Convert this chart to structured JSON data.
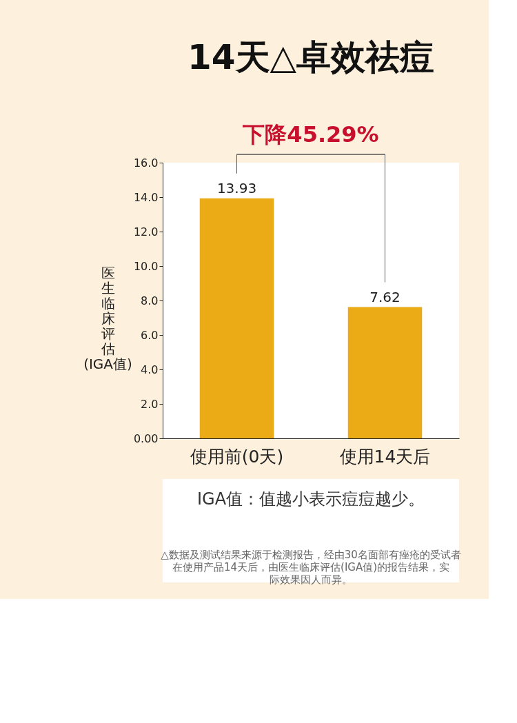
{
  "chart_data": {
    "type": "bar",
    "title": "14天△卓效祛痘",
    "ylabel": "医生临床评估(IGA值)",
    "categories": [
      "使用前(0天)",
      "使用14天后"
    ],
    "values": [
      13.93,
      7.62
    ],
    "color": "#ebab17",
    "data_labels": true,
    "ylim": [
      0,
      16
    ],
    "yticks": [
      {
        "value": 0,
        "label": "0.00"
      },
      {
        "value": 2,
        "label": "2.0"
      },
      {
        "value": 4,
        "label": "4.0"
      },
      {
        "value": 6,
        "label": "6.0"
      },
      {
        "value": 8,
        "label": "8.0"
      },
      {
        "value": 10,
        "label": "10.0"
      },
      {
        "value": 12,
        "label": "12.0"
      },
      {
        "value": 14,
        "label": "14.0"
      },
      {
        "value": 16,
        "label": "16.0"
      }
    ],
    "grid": false,
    "annotations": [
      "下降45.29%",
      "IGA值：值越小表示痘痘越少。",
      "△数据及测试结果来源于检测报告，经由30名面部有痤疮的受试者在使用产品14天后，由医生临床评估(IGA值)的报告结果，实际效果因人而异。"
    ]
  }
}
